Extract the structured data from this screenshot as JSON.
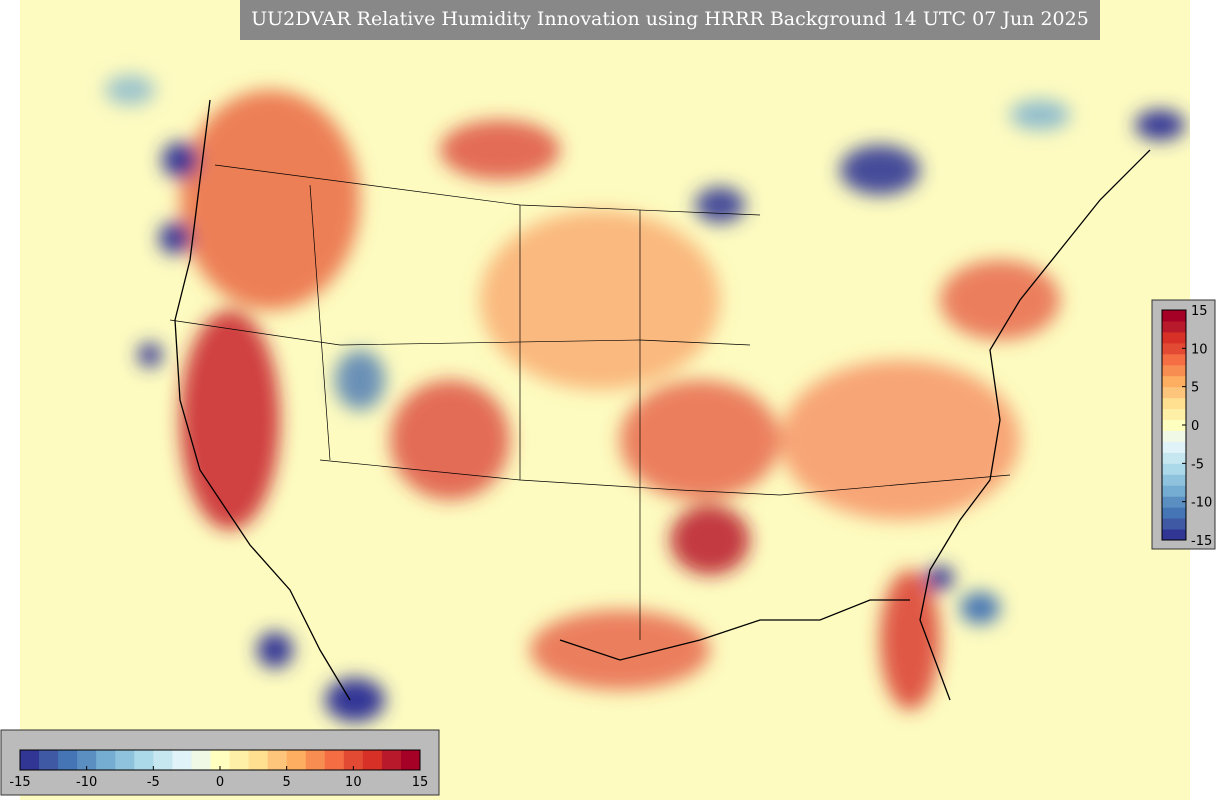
{
  "title": "UU2DVAR Relative Humidity Innovation using HRRR Background 14 UTC 07 Jun 2025",
  "colorbar": {
    "range": [
      -15,
      15
    ],
    "ticks": [
      -15,
      -10,
      -5,
      0,
      5,
      10,
      15
    ],
    "colors": [
      "#313695",
      "#3f59a5",
      "#4575b4",
      "#5b8fc2",
      "#74add1",
      "#8fc3dd",
      "#abd9e9",
      "#c6e6f0",
      "#e0f3f8",
      "#f0f9e6",
      "#ffffbf",
      "#fff0a8",
      "#fee090",
      "#fdc57c",
      "#fdae61",
      "#f88d52",
      "#f46d43",
      "#e34a33",
      "#d73027",
      "#b81a2b",
      "#a50026"
    ]
  }
}
